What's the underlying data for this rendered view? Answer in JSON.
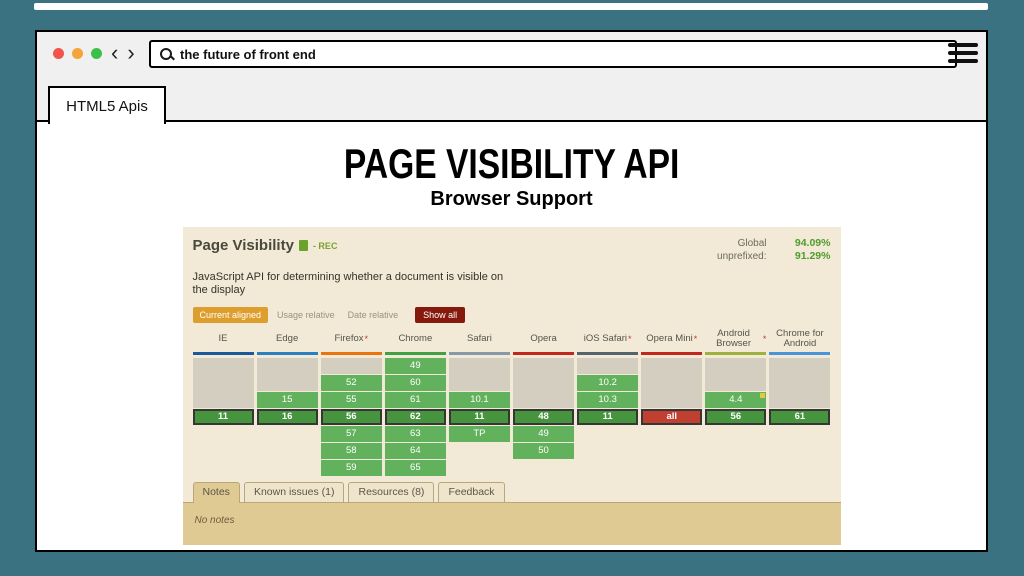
{
  "window": {
    "search_text": "the future of front end",
    "tab_label": "HTML5 Apis"
  },
  "slide": {
    "title": "PAGE VISIBILITY API",
    "subtitle": "Browser Support"
  },
  "caniuse": {
    "title": "Page Visibility",
    "spec_status": "- REC",
    "stats": {
      "global_label": "Global",
      "global_value": "94.09%",
      "unprefixed_label": "unprefixed:",
      "unprefixed_value": "91.29%"
    },
    "description": "JavaScript API for determining whether a document is visible on the display",
    "controls": {
      "current_aligned": "Current aligned",
      "usage_relative": "Usage relative",
      "date_relative": "Date relative",
      "show_all": "Show all"
    },
    "table": {
      "columns": [
        {
          "name": "IE",
          "note": false,
          "color": "#1b5a9a",
          "cells": [
            {
              "t": "gray"
            },
            {
              "t": "gray"
            },
            {
              "t": "gray"
            },
            {
              "t": "current",
              "v": "11"
            },
            {
              "t": "empty"
            },
            {
              "t": "empty"
            },
            {
              "t": "empty"
            }
          ]
        },
        {
          "name": "Edge",
          "note": false,
          "color": "#2a7fc1",
          "cells": [
            {
              "t": "gray"
            },
            {
              "t": "gray"
            },
            {
              "t": "green",
              "v": "15"
            },
            {
              "t": "current",
              "v": "16"
            },
            {
              "t": "empty"
            },
            {
              "t": "empty"
            },
            {
              "t": "empty"
            }
          ]
        },
        {
          "name": "Firefox",
          "note": true,
          "color": "#e8740e",
          "cells": [
            {
              "t": "gray"
            },
            {
              "t": "green",
              "v": "52"
            },
            {
              "t": "green",
              "v": "55"
            },
            {
              "t": "current",
              "v": "56"
            },
            {
              "t": "green",
              "v": "57"
            },
            {
              "t": "green",
              "v": "58"
            },
            {
              "t": "green",
              "v": "59"
            }
          ]
        },
        {
          "name": "Chrome",
          "note": false,
          "color": "#3fa142",
          "cells": [
            {
              "t": "green",
              "v": "49"
            },
            {
              "t": "green",
              "v": "60"
            },
            {
              "t": "green",
              "v": "61"
            },
            {
              "t": "current",
              "v": "62"
            },
            {
              "t": "green",
              "v": "63"
            },
            {
              "t": "green",
              "v": "64"
            },
            {
              "t": "green",
              "v": "65"
            }
          ]
        },
        {
          "name": "Safari",
          "note": false,
          "color": "#8699a8",
          "cells": [
            {
              "t": "gray"
            },
            {
              "t": "gray"
            },
            {
              "t": "green",
              "v": "10.1"
            },
            {
              "t": "current",
              "v": "11"
            },
            {
              "t": "green",
              "v": "TP"
            },
            {
              "t": "empty"
            },
            {
              "t": "empty"
            }
          ]
        },
        {
          "name": "Opera",
          "note": false,
          "color": "#c1271c",
          "cells": [
            {
              "t": "gray"
            },
            {
              "t": "gray"
            },
            {
              "t": "gray"
            },
            {
              "t": "current",
              "v": "48"
            },
            {
              "t": "green",
              "v": "49"
            },
            {
              "t": "green",
              "v": "50"
            },
            {
              "t": "empty"
            }
          ]
        },
        {
          "name": "iOS Safari",
          "note": true,
          "color": "#54646e",
          "cells": [
            {
              "t": "gray"
            },
            {
              "t": "green",
              "v": "10.2"
            },
            {
              "t": "green",
              "v": "10.3"
            },
            {
              "t": "current",
              "v": "11"
            },
            {
              "t": "empty"
            },
            {
              "t": "empty"
            },
            {
              "t": "empty"
            }
          ]
        },
        {
          "name": "Opera Mini",
          "note": true,
          "color": "#c1271c",
          "cells": [
            {
              "t": "gray"
            },
            {
              "t": "gray"
            },
            {
              "t": "gray"
            },
            {
              "t": "red",
              "v": "all"
            },
            {
              "t": "empty"
            },
            {
              "t": "empty"
            },
            {
              "t": "empty"
            }
          ]
        },
        {
          "name": "Android Browser",
          "note": true,
          "color": "#9cb23f",
          "cells": [
            {
              "t": "gray"
            },
            {
              "t": "gray"
            },
            {
              "t": "green",
              "v": "4.4",
              "note": true
            },
            {
              "t": "current",
              "v": "56"
            },
            {
              "t": "empty"
            },
            {
              "t": "empty"
            },
            {
              "t": "empty"
            }
          ]
        },
        {
          "name": "Chrome for Android",
          "note": false,
          "color": "#4a94d8",
          "cells": [
            {
              "t": "gray"
            },
            {
              "t": "gray"
            },
            {
              "t": "gray"
            },
            {
              "t": "current",
              "v": "61"
            },
            {
              "t": "empty"
            },
            {
              "t": "empty"
            },
            {
              "t": "empty"
            }
          ]
        }
      ]
    },
    "tabs": [
      {
        "label": "Notes",
        "active": true
      },
      {
        "label": "Known issues (1)",
        "active": false
      },
      {
        "label": "Resources (8)",
        "active": false
      },
      {
        "label": "Feedback",
        "active": false
      }
    ],
    "notes_text": "No notes"
  },
  "colors": {
    "slide_background": "#3b7282",
    "caniuse_background": "#f2e9d6",
    "cell_green": "#62b15c",
    "cell_current_green": "#47943e",
    "cell_red": "#bf4030",
    "cell_unknown_gray": "#d4cec1",
    "stat_green": "#4f9c2d",
    "active_filter_amber": "#dd9e2d",
    "show_all_maroon": "#85190c",
    "notes_panel_tan": "#dfca94"
  }
}
